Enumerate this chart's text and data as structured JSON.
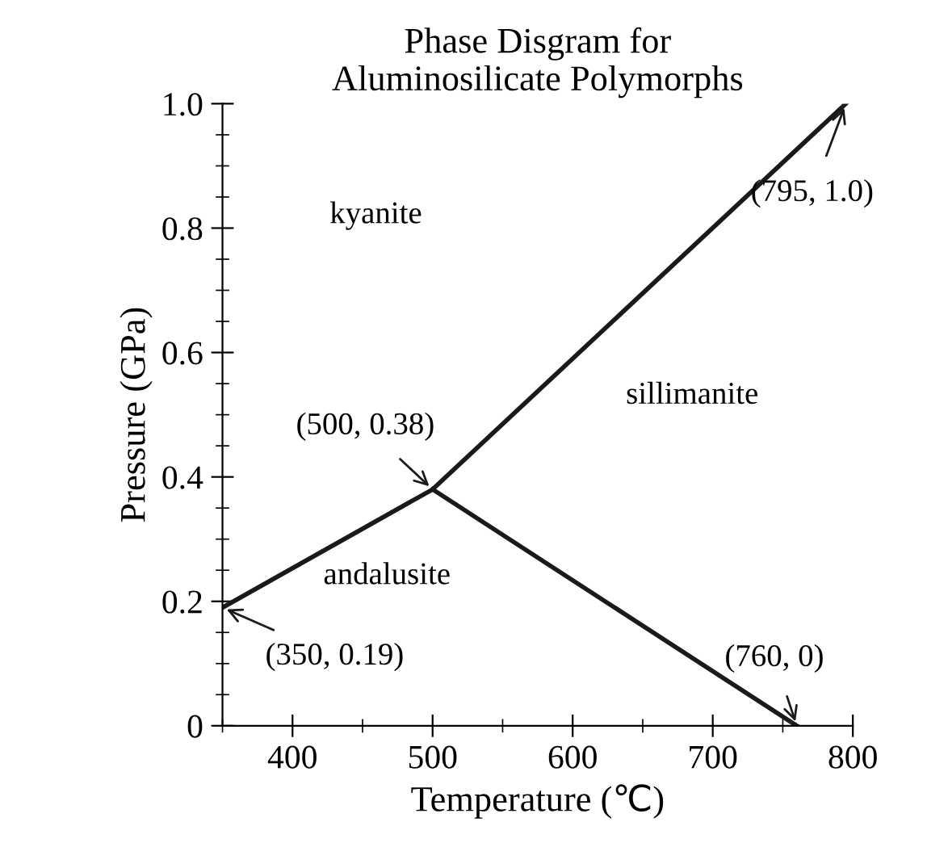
{
  "chart_data": {
    "type": "line",
    "title": "Phase Disgram for\nAluminosilicate Polymorphs",
    "xlabel": "Temperature (℃)",
    "ylabel": "Pressure (GPa)",
    "series": [
      {
        "x": [
          350,
          500,
          795
        ],
        "values": [
          0.19,
          0.38,
          1.0
        ],
        "color": "#1a1a1a"
      },
      {
        "x": [
          500,
          760
        ],
        "values": [
          0.38,
          0
        ],
        "color": "#1a1a1a"
      }
    ],
    "xlim": [
      350,
      800
    ],
    "ylim": [
      0,
      1.0
    ],
    "xticks": [
      400,
      500,
      600,
      700,
      800
    ],
    "yticks": [
      0,
      0.2,
      0.4,
      0.6,
      0.8,
      {
        "value": 1.0,
        "label": "1.0"
      }
    ],
    "grid": false,
    "legend": false,
    "marker": "none",
    "line_style": "solid",
    "annotations": [
      {
        "text": "(350, 0.19)",
        "x": 350,
        "y": 0.19
      },
      {
        "text": "(500, 0.38)",
        "x": 500,
        "y": 0.38
      },
      {
        "text": "(795, 1.0)",
        "x": 795,
        "y": 1.0
      },
      {
        "text": "(760, 0)",
        "x": 760,
        "y": 0
      },
      "kyanite",
      "sillimanite",
      "andalusite"
    ]
  }
}
